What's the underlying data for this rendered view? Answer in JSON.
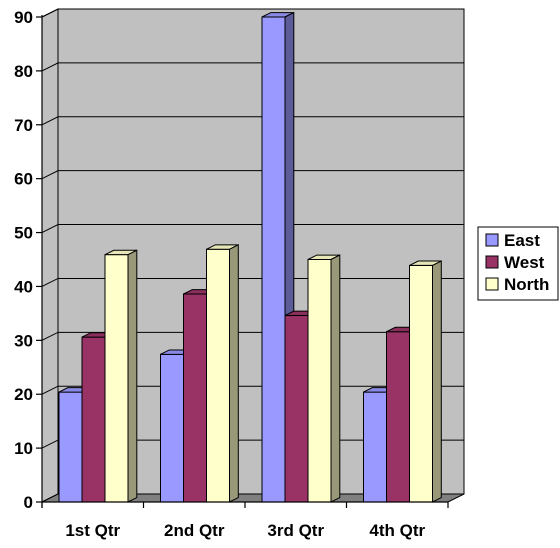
{
  "chart_data": {
    "type": "bar",
    "title": "",
    "xlabel": "",
    "ylabel": "",
    "categories": [
      "1st Qtr",
      "2nd Qtr",
      "3rd Qtr",
      "4th Qtr"
    ],
    "series": [
      {
        "name": "East",
        "values": [
          20.4,
          27.4,
          90,
          20.4
        ],
        "color": "#9999FF"
      },
      {
        "name": "West",
        "values": [
          30.6,
          38.6,
          34.6,
          31.6
        ],
        "color": "#993366"
      },
      {
        "name": "North",
        "values": [
          45.9,
          46.9,
          45,
          43.9
        ],
        "color": "#FFFFCC"
      }
    ],
    "ylim": [
      0,
      90
    ],
    "yticks": [
      "0",
      "10",
      "20",
      "30",
      "40",
      "50",
      "60",
      "70",
      "80",
      "90"
    ],
    "grid": true,
    "three_d": true,
    "legend": "right",
    "wall_color": "#C0C0C0",
    "floor_color": "#808080"
  }
}
